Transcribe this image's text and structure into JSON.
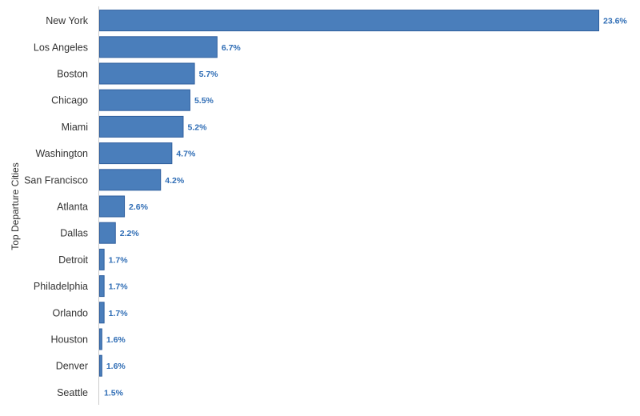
{
  "chart_data": {
    "type": "bar",
    "orientation": "horizontal",
    "title": "",
    "xlabel": "",
    "ylabel": "Top Departure Cities",
    "categories": [
      "New York",
      "Los Angeles",
      "Boston",
      "Chicago",
      "Miami",
      "Washington",
      "San Francisco",
      "Atlanta",
      "Dallas",
      "Detroit",
      "Philadelphia",
      "Orlando",
      "Houston",
      "Denver",
      "Seattle"
    ],
    "values": [
      23.6,
      6.7,
      5.7,
      5.5,
      5.2,
      4.7,
      4.2,
      2.6,
      2.2,
      1.7,
      1.7,
      1.7,
      1.6,
      1.6,
      1.5
    ],
    "value_labels": [
      "23.6%",
      "6.7%",
      "5.7%",
      "5.5%",
      "5.2%",
      "4.7%",
      "4.2%",
      "2.6%",
      "2.2%",
      "1.7%",
      "1.7%",
      "1.7%",
      "1.6%",
      "1.6%",
      "1.5%"
    ],
    "xlim": [
      1.5,
      23.6
    ],
    "grid": false,
    "legend": "none",
    "colors": {
      "bar_fill": "#4a7ebb",
      "bar_stroke": "#2f5f9e",
      "value_label": "#2f6db5",
      "axis_line": "#cccccc"
    }
  }
}
